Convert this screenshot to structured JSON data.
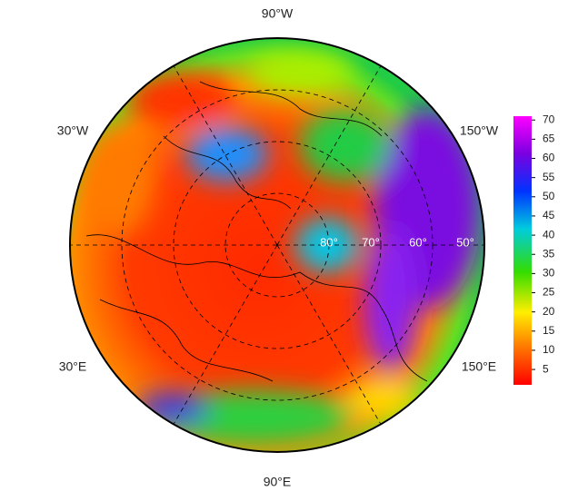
{
  "map": {
    "longitude_labels": [
      "90°W",
      "150°W",
      "150°E",
      "90°E",
      "30°E",
      "30°W"
    ],
    "latitude_labels": [
      "80°",
      "70°",
      "60°",
      "50°"
    ],
    "colorbar": {
      "lim": [
        1,
        71
      ],
      "ticks": [
        5,
        10,
        15,
        20,
        25,
        30,
        35,
        40,
        45,
        50,
        55,
        60,
        65,
        70
      ]
    }
  }
}
